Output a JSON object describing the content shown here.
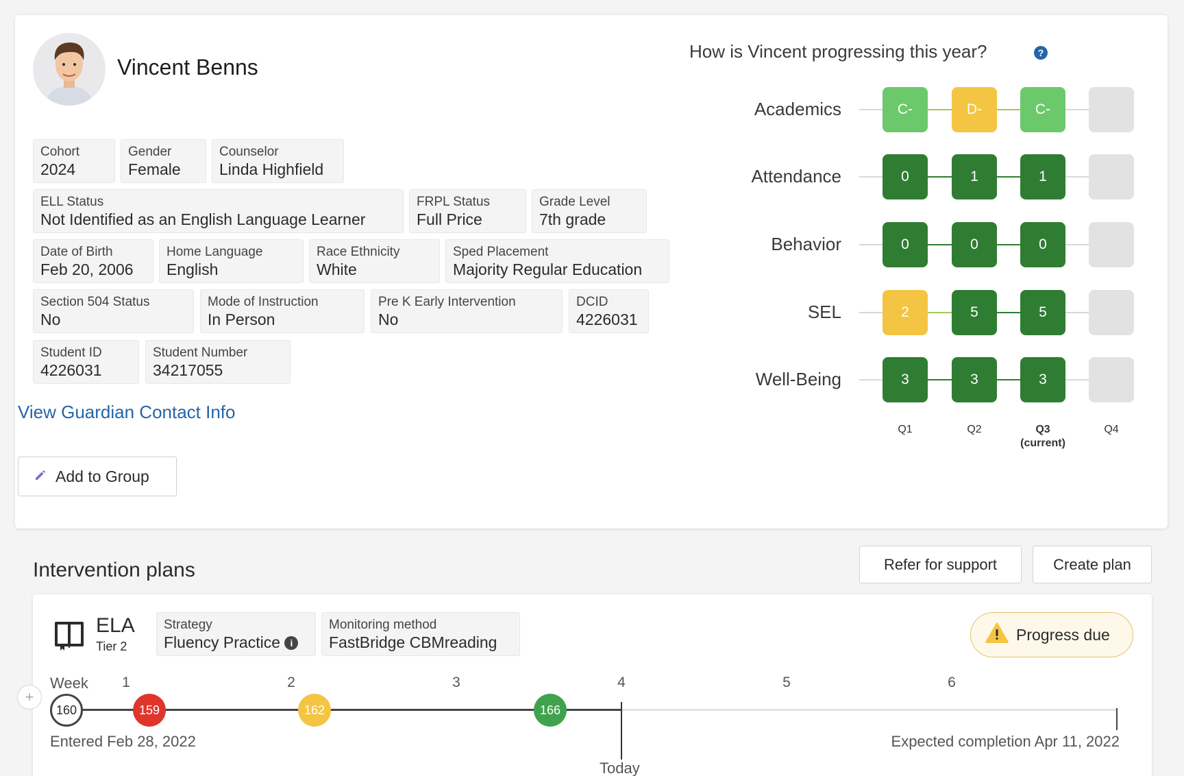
{
  "student": {
    "name": "Vincent Benns",
    "fields": [
      {
        "label": "Cohort",
        "value": "2024"
      },
      {
        "label": "Gender",
        "value": "Female"
      },
      {
        "label": "Counselor",
        "value": "Linda Highfield"
      },
      {
        "label": "ELL Status",
        "value": "Not Identified as an English Language Learner"
      },
      {
        "label": "FRPL Status",
        "value": "Full Price"
      },
      {
        "label": "Grade Level",
        "value": "7th grade"
      },
      {
        "label": "Date of Birth",
        "value": "Feb 20, 2006"
      },
      {
        "label": "Home Language",
        "value": "English"
      },
      {
        "label": "Race Ethnicity",
        "value": "White"
      },
      {
        "label": "Sped Placement",
        "value": "Majority Regular Education"
      },
      {
        "label": "Section 504 Status",
        "value": "No"
      },
      {
        "label": "Mode of Instruction",
        "value": "In Person"
      },
      {
        "label": "Pre K Early Intervention",
        "value": "No"
      },
      {
        "label": "DCID",
        "value": "4226031"
      },
      {
        "label": "Student ID",
        "value": "4226031"
      },
      {
        "label": "Student Number",
        "value": "34217055"
      }
    ],
    "guardian_link": "View Guardian Contact Info",
    "add_to_group": "Add to Group"
  },
  "progress": {
    "title": "How is Vincent progressing this year?",
    "help_icon": "?",
    "quarters": [
      {
        "label": "Q1",
        "sub": ""
      },
      {
        "label": "Q2",
        "sub": ""
      },
      {
        "label": "Q3",
        "sub": "(current)"
      },
      {
        "label": "Q4",
        "sub": ""
      }
    ],
    "metrics": [
      {
        "label": "Academics",
        "values": [
          "C-",
          "D-",
          "C-",
          ""
        ],
        "statuses": [
          "light-green",
          "yellow",
          "light-green",
          "empty"
        ]
      },
      {
        "label": "Attendance",
        "values": [
          "0",
          "1",
          "1",
          ""
        ],
        "statuses": [
          "dark-green",
          "dark-green",
          "dark-green",
          "empty"
        ]
      },
      {
        "label": "Behavior",
        "values": [
          "0",
          "0",
          "0",
          ""
        ],
        "statuses": [
          "dark-green",
          "dark-green",
          "dark-green",
          "empty"
        ]
      },
      {
        "label": "SEL",
        "values": [
          "2",
          "5",
          "5",
          ""
        ],
        "statuses": [
          "yellow",
          "dark-green",
          "dark-green",
          "empty"
        ]
      },
      {
        "label": "Well-Being",
        "values": [
          "3",
          "3",
          "3",
          ""
        ],
        "statuses": [
          "dark-green",
          "dark-green",
          "dark-green",
          "empty"
        ]
      }
    ],
    "colors": {
      "light-green": "#6cc96b",
      "yellow": "#f4c542",
      "dark-green": "#2f7d32",
      "empty": "#e2e2e2"
    }
  },
  "interventions": {
    "title": "Intervention plans",
    "refer_button": "Refer for support",
    "create_button": "Create plan",
    "plan": {
      "subject": "ELA",
      "tier": "Tier 2",
      "strategy_label": "Strategy",
      "strategy_value": "Fluency Practice",
      "info_icon": "i",
      "monitoring_label": "Monitoring method",
      "monitoring_value": "FastBridge CBMreading",
      "progress_due": "Progress due",
      "timeline": {
        "week_label": "Week",
        "weeks": [
          "1",
          "2",
          "3",
          "4",
          "5",
          "6"
        ],
        "add_symbol": "+",
        "baseline": "160",
        "scores": [
          {
            "value": "159",
            "color": "#e0352b"
          },
          {
            "value": "162",
            "color": "#f4c542"
          },
          {
            "value": "166",
            "color": "#3fa34d"
          }
        ],
        "entered": "Entered Feb 28, 2022",
        "expected": "Expected completion Apr 11, 2022",
        "today": "Today"
      }
    }
  }
}
